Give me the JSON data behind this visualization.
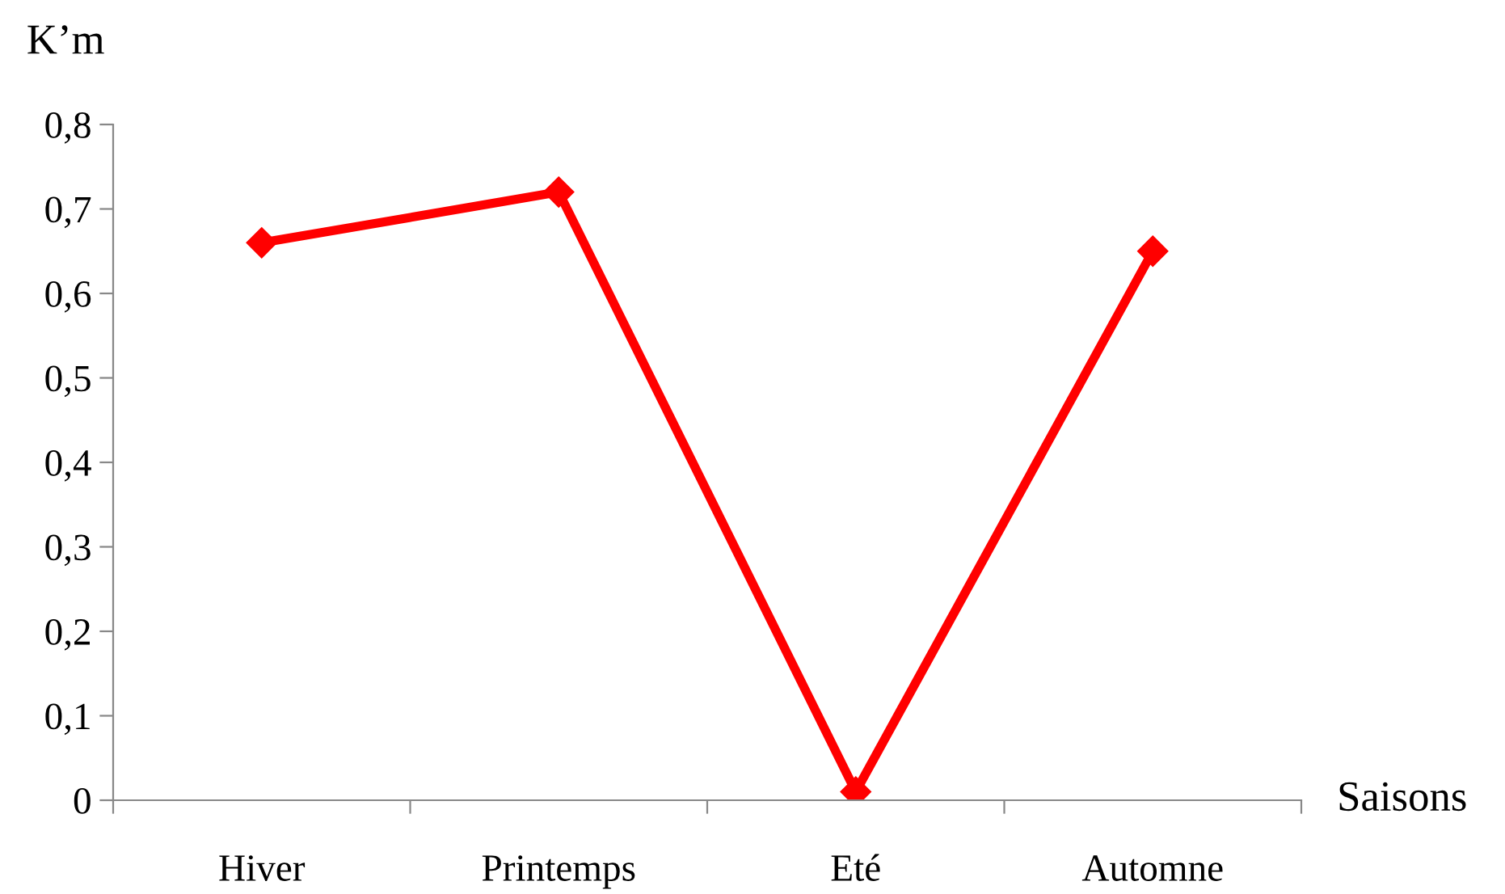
{
  "chart_data": {
    "type": "line",
    "xlabel": "Saisons",
    "ylabel": "K’m",
    "categories": [
      "Hiver",
      "Printemps",
      "Eté",
      "Automne"
    ],
    "series": [
      {
        "color": "#ff0000",
        "values": [
          0.66,
          0.72,
          0.01,
          0.65
        ]
      }
    ],
    "ylim": [
      0,
      0.8
    ],
    "yticks": [
      {
        "value": 0,
        "label": "0"
      },
      {
        "value": 0.1,
        "label": "0,1"
      },
      {
        "value": 0.2,
        "label": "0,2"
      },
      {
        "value": 0.3,
        "label": "0,3"
      },
      {
        "value": 0.4,
        "label": "0,4"
      },
      {
        "value": 0.5,
        "label": "0,5"
      },
      {
        "value": 0.6,
        "label": "0,6"
      },
      {
        "value": 0.7,
        "label": "0,7"
      },
      {
        "value": 0.8,
        "label": "0,8"
      }
    ],
    "marker": "diamond",
    "line_style": "solid",
    "grid": false,
    "legend": false
  }
}
